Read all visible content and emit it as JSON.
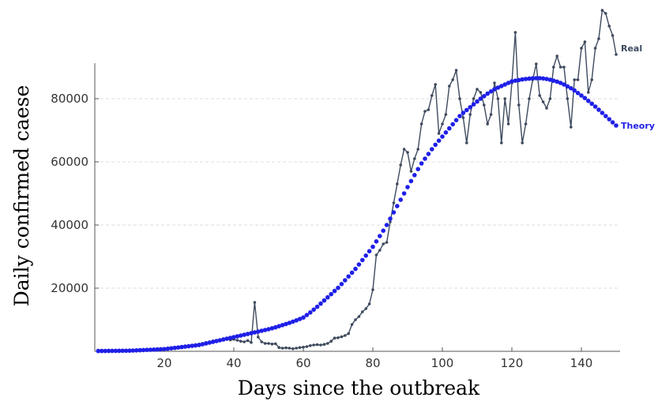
{
  "chart_data": {
    "type": "line",
    "x_label": "Days since the outbreak",
    "y_label": "Daily confirmed caese",
    "x": [
      1,
      2,
      3,
      4,
      5,
      6,
      7,
      8,
      9,
      10,
      11,
      12,
      13,
      14,
      15,
      16,
      17,
      18,
      19,
      20,
      21,
      22,
      23,
      24,
      25,
      26,
      27,
      28,
      29,
      30,
      31,
      32,
      33,
      34,
      35,
      36,
      37,
      38,
      39,
      40,
      41,
      42,
      43,
      44,
      45,
      46,
      47,
      48,
      49,
      50,
      51,
      52,
      53,
      54,
      55,
      56,
      57,
      58,
      59,
      60,
      61,
      62,
      63,
      64,
      65,
      66,
      67,
      68,
      69,
      70,
      71,
      72,
      73,
      74,
      75,
      76,
      77,
      78,
      79,
      80,
      81,
      82,
      83,
      84,
      85,
      86,
      87,
      88,
      89,
      90,
      91,
      92,
      93,
      94,
      95,
      96,
      97,
      98,
      99,
      100,
      101,
      102,
      103,
      104,
      105,
      106,
      107,
      108,
      109,
      110,
      111,
      112,
      113,
      114,
      115,
      116,
      117,
      118,
      119,
      120,
      121,
      122,
      123,
      124,
      125,
      126,
      127,
      128,
      129,
      130,
      131,
      132,
      133,
      134,
      135,
      136,
      137,
      138,
      139,
      140,
      141,
      142,
      143,
      144,
      145,
      146,
      147,
      148,
      149,
      150
    ],
    "series": [
      {
        "name": "Real",
        "color": "#3e4a5e",
        "style": "line-markers",
        "values": [
          0,
          0,
          0,
          100,
          100,
          100,
          200,
          200,
          200,
          300,
          300,
          300,
          400,
          400,
          500,
          500,
          600,
          600,
          700,
          800,
          900,
          1000,
          1100,
          1200,
          1300,
          1500,
          1700,
          1900,
          2100,
          2300,
          2500,
          2800,
          3000,
          3300,
          3500,
          3700,
          4000,
          4200,
          3600,
          3800,
          3500,
          3200,
          3000,
          3400,
          2800,
          15500,
          4500,
          3000,
          2500,
          2500,
          2300,
          2400,
          1200,
          1000,
          1100,
          1000,
          800,
          1000,
          1200,
          1300,
          1500,
          1800,
          2000,
          2100,
          2000,
          2200,
          2500,
          3200,
          4200,
          4300,
          4600,
          5000,
          5600,
          8500,
          10000,
          11000,
          12500,
          13500,
          15000,
          19500,
          30500,
          32000,
          34000,
          34500,
          41000,
          47000,
          53000,
          59000,
          64000,
          63000,
          57000,
          61000,
          64000,
          72000,
          76000,
          76500,
          81000,
          84500,
          69000,
          72000,
          75000,
          84000,
          86000,
          89000,
          80000,
          74000,
          66000,
          75000,
          80000,
          83000,
          82000,
          78000,
          72000,
          75000,
          85000,
          80000,
          66000,
          80000,
          72000,
          85000,
          101000,
          78000,
          66000,
          72000,
          80000,
          86000,
          91000,
          81000,
          79000,
          77000,
          80000,
          90000,
          93500,
          90000,
          90000,
          80000,
          71000,
          86000,
          86000,
          96000,
          98000,
          82000,
          86000,
          96000,
          99000,
          108000,
          107000,
          103000,
          100000,
          94000
        ]
      },
      {
        "name": "Theory",
        "color": "#1f1fe8",
        "style": "markers",
        "values": [
          100,
          110,
          120,
          130,
          140,
          150,
          160,
          170,
          185,
          200,
          250,
          300,
          350,
          400,
          450,
          500,
          550,
          600,
          650,
          700,
          830,
          960,
          1090,
          1220,
          1350,
          1480,
          1610,
          1740,
          1870,
          2000,
          2250,
          2500,
          2750,
          3000,
          3250,
          3500,
          3750,
          4000,
          4250,
          4500,
          4750,
          5000,
          5250,
          5500,
          5750,
          6000,
          6250,
          6500,
          6750,
          7000,
          7300,
          7600,
          7950,
          8300,
          8650,
          9000,
          9400,
          9800,
          10250,
          10700,
          11500,
          12300,
          13200,
          14100,
          15100,
          16100,
          17100,
          18100,
          19100,
          20100,
          21300,
          22500,
          23700,
          24900,
          26100,
          27500,
          28900,
          30300,
          31700,
          33100,
          34800,
          36500,
          38200,
          40000,
          42000,
          44000,
          46000,
          48000,
          50000,
          52000,
          53900,
          55800,
          57700,
          59500,
          61000,
          62500,
          64000,
          65400,
          66700,
          68000,
          69300,
          70600,
          71900,
          73200,
          74500,
          75500,
          76400,
          77300,
          78200,
          79100,
          80000,
          80800,
          81600,
          82300,
          83000,
          83500,
          84000,
          84500,
          85000,
          85500,
          85700,
          85900,
          86100,
          86250,
          86350,
          86450,
          86500,
          86500,
          86400,
          86250,
          86000,
          85700,
          85400,
          85000,
          84500,
          83900,
          83300,
          82600,
          81800,
          81000,
          80200,
          79300,
          78400,
          77500,
          76500,
          75500,
          74500,
          73500,
          72500,
          71500
        ]
      }
    ],
    "xlim": [
      0,
      150
    ],
    "xticks": [
      20,
      40,
      60,
      80,
      100,
      120,
      140
    ],
    "ylim": [
      0,
      110000
    ],
    "yticks": [
      20000,
      40000,
      60000,
      80000
    ],
    "grid": true
  }
}
